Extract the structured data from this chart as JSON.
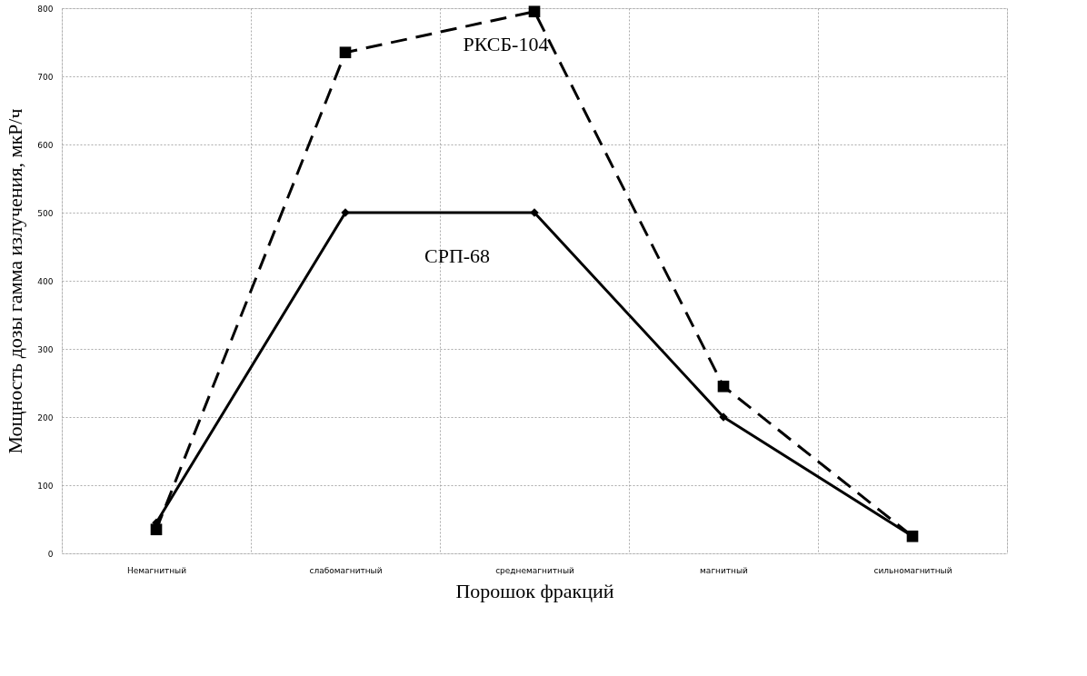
{
  "chart_data": {
    "type": "line",
    "xlabel": "Порошок фракций",
    "ylabel": "Мощность дозы гамма излучения, мкР/ч",
    "categories": [
      "Немагнитный",
      "слабомагнитный",
      "среднемагнитный",
      "магнитный",
      "сильномагнитный"
    ],
    "series": [
      {
        "name": "РКСБ-104",
        "color": "#000000",
        "values": [
          35,
          735,
          795,
          245,
          25
        ],
        "marker": "square",
        "line_style": "dashed"
      },
      {
        "name": "СРП-68",
        "color": "#000000",
        "values": [
          45,
          500,
          500,
          200,
          25
        ],
        "marker": "diamond",
        "line_style": "solid"
      }
    ],
    "ylim": [
      0,
      800
    ],
    "yticks": [
      0,
      100,
      200,
      300,
      400,
      500,
      600,
      700,
      800
    ],
    "grid": true
  }
}
